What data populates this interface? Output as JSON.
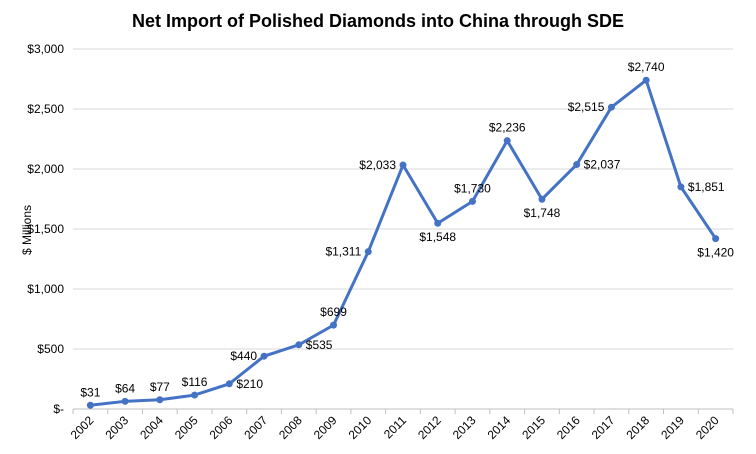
{
  "chart_data": {
    "type": "line",
    "title": "Net Import of Polished Diamonds into China through SDE",
    "ylabel": "$ Millions",
    "xlabel": "",
    "ylim": [
      0,
      3000
    ],
    "yticks": [
      0,
      500,
      1000,
      1500,
      2000,
      2500,
      3000
    ],
    "ytick_labels": [
      "$-",
      "$500",
      "$1,000",
      "$1,500",
      "$2,000",
      "$2,500",
      "$3,000"
    ],
    "grid": true,
    "legend": "none",
    "categories": [
      "2002",
      "2003",
      "2004",
      "2005",
      "2006",
      "2007",
      "2008",
      "2009",
      "2010",
      "2011",
      "2012",
      "2013",
      "2014",
      "2015",
      "2016",
      "2017",
      "2018",
      "2019",
      "2020"
    ],
    "series": [
      {
        "values": [
          31,
          64,
          77,
          116,
          210,
          440,
          535,
          699,
          1311,
          2033,
          1548,
          1730,
          2236,
          1748,
          2037,
          2515,
          2740,
          1851,
          1420
        ],
        "labels": [
          "$31",
          "$64",
          "$77",
          "$116",
          "$210",
          "$440",
          "$535",
          "$699",
          "$1,311",
          "$2,033",
          "$1,548",
          "$1,730",
          "$2,236",
          "$1,748",
          "$2,037",
          "$2,515",
          "$2,740",
          "$1,851",
          "$1,420"
        ],
        "color": "#4472c4"
      }
    ]
  }
}
